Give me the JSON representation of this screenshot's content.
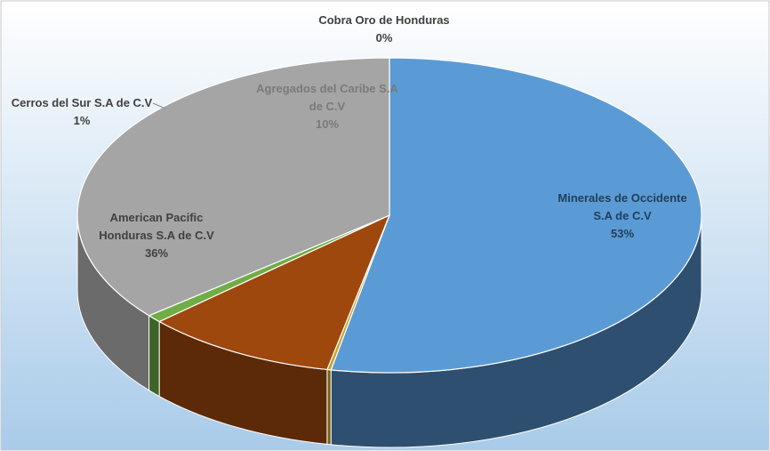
{
  "chart_data": {
    "type": "pie",
    "style": "3d",
    "title": "",
    "colors": {
      "background_top": "#ffffff",
      "background_bottom": "#a9cbe9",
      "border": "#c9c9c9"
    },
    "slices": [
      {
        "label_lines": [
          "Minerales de Occidente",
          "S.A de C.V"
        ],
        "pct_label": "53%",
        "value": 53,
        "top_color": "#5b9bd5",
        "side_color": "#2e4f6f",
        "label_color": "#1f3e5c"
      },
      {
        "label_lines": [
          "Cobra Oro de Honduras"
        ],
        "pct_label": "0%",
        "value": 0.2,
        "top_color": "#c9a227",
        "side_color": "#7a6115",
        "label_color": "#404040"
      },
      {
        "label_lines": [
          "Agregados del Caribe S.A",
          "de C.V"
        ],
        "pct_label": "10%",
        "value": 10,
        "top_color": "#9e480e",
        "side_color": "#5c2a08",
        "label_color": "#7a7a7a"
      },
      {
        "label_lines": [
          "Cerros del Sur S.A de C.V"
        ],
        "pct_label": "1%",
        "value": 0.8,
        "top_color": "#70ad47",
        "side_color": "#3e6427",
        "label_color": "#404040"
      },
      {
        "label_lines": [
          "American Pacific",
          "Honduras S.A de C.V"
        ],
        "pct_label": "36%",
        "value": 36,
        "top_color": "#a5a5a5",
        "side_color": "#6b6b6b",
        "label_color": "#404040"
      }
    ]
  }
}
